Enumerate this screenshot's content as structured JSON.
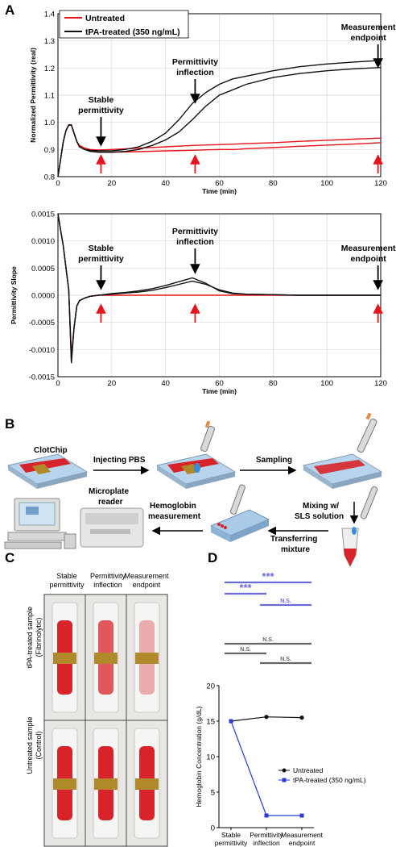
{
  "panels": {
    "A": "A",
    "B": "B",
    "C": "C",
    "D": "D"
  },
  "colors": {
    "untreated": "#e8141c",
    "tpa": "#111111",
    "tpa_d": "#2a3bd6",
    "sig": "#6b6bd8",
    "gray_bar": "#666666",
    "chip_glass": "#b8d4ec",
    "blood": "#d8232a",
    "gold": "#b08a2a"
  },
  "chart_data": [
    {
      "type": "line",
      "panel": "A-top",
      "xlabel": "Time (min)",
      "ylabel": "Normalized Permittivity (real)",
      "xlim": [
        0,
        120
      ],
      "ylim": [
        0.8,
        1.4
      ],
      "xticks": [
        0,
        20,
        40,
        60,
        80,
        100,
        120
      ],
      "yticks": [
        0.8,
        0.9,
        1.0,
        1.1,
        1.2,
        1.3,
        1.4
      ],
      "yticklabels": [
        "0.8",
        "0.9",
        "1.0",
        "1.1",
        "1.2",
        "1.3",
        "1.4"
      ],
      "grid": true,
      "legend": "top-left",
      "series": [
        {
          "name": "Untreated",
          "color": "#e8141c",
          "x": [
            0,
            2,
            3,
            4,
            5,
            6,
            7,
            8,
            10,
            12,
            15,
            20,
            30,
            40,
            50,
            60,
            66,
            70,
            80,
            90,
            100,
            110,
            120
          ],
          "y": [
            0.8,
            0.93,
            0.97,
            0.99,
            0.99,
            0.96,
            0.93,
            0.915,
            0.905,
            0.9,
            0.898,
            0.9,
            0.905,
            0.91,
            0.915,
            0.918,
            0.92,
            0.922,
            0.925,
            0.93,
            0.934,
            0.938,
            0.942
          ]
        },
        {
          "name": "Untreated",
          "color": "#e8141c",
          "x": [
            0,
            2,
            3,
            4,
            5,
            6,
            7,
            8,
            10,
            12,
            15,
            20,
            30,
            40,
            50,
            60,
            66,
            70,
            80,
            90,
            100,
            110,
            120
          ],
          "y": [
            0.8,
            0.93,
            0.97,
            0.99,
            0.99,
            0.96,
            0.93,
            0.91,
            0.9,
            0.895,
            0.89,
            0.89,
            0.892,
            0.895,
            0.897,
            0.9,
            0.9,
            0.903,
            0.907,
            0.912,
            0.916,
            0.92,
            0.925
          ]
        },
        {
          "name": "tPA-treated (350 ng/mL)",
          "color": "#111111",
          "x": [
            0,
            2,
            3,
            4,
            5,
            6,
            7,
            8,
            10,
            12,
            15,
            20,
            25,
            30,
            35,
            40,
            45,
            50,
            55,
            60,
            65,
            70,
            80,
            90,
            100,
            110,
            120
          ],
          "y": [
            0.8,
            0.93,
            0.97,
            0.99,
            0.99,
            0.96,
            0.93,
            0.91,
            0.9,
            0.897,
            0.895,
            0.895,
            0.9,
            0.91,
            0.93,
            0.96,
            1.01,
            1.07,
            1.11,
            1.14,
            1.16,
            1.17,
            1.19,
            1.205,
            1.215,
            1.222,
            1.228
          ]
        },
        {
          "name": "tPA-treated (350 ng/mL)",
          "color": "#111111",
          "x": [
            0,
            2,
            3,
            4,
            5,
            6,
            7,
            8,
            10,
            12,
            15,
            20,
            25,
            30,
            35,
            40,
            45,
            50,
            55,
            60,
            65,
            70,
            80,
            90,
            100,
            110,
            120
          ],
          "y": [
            0.8,
            0.93,
            0.97,
            0.99,
            0.99,
            0.96,
            0.93,
            0.91,
            0.9,
            0.893,
            0.89,
            0.89,
            0.893,
            0.9,
            0.915,
            0.935,
            0.965,
            1.01,
            1.06,
            1.1,
            1.12,
            1.14,
            1.165,
            1.18,
            1.19,
            1.197,
            1.202
          ]
        }
      ],
      "annotations": [
        {
          "text": [
            "Stable",
            "permittivity"
          ],
          "x": 16
        },
        {
          "text": [
            "Permittivity",
            "inflection"
          ],
          "x": 51
        },
        {
          "text": [
            "Measurement",
            "endpoint"
          ],
          "x": 119
        }
      ]
    },
    {
      "type": "line",
      "panel": "A-bottom",
      "xlabel": "Time (min)",
      "ylabel": "Permittivity Slope",
      "xlim": [
        0,
        120
      ],
      "ylim": [
        -0.0015,
        0.0015
      ],
      "xticks": [
        0,
        20,
        40,
        60,
        80,
        100,
        120
      ],
      "yticks": [
        -0.0015,
        -0.001,
        -0.0005,
        0,
        0.0005,
        0.001,
        0.0015
      ],
      "yticklabels": [
        "-0.0015",
        "-0.0010",
        "-0.0005",
        "0.0000",
        "0.0005",
        "0.0010",
        "0.0015"
      ],
      "grid": true,
      "series": [
        {
          "name": "Untreated",
          "color": "#e8141c",
          "x": [
            0,
            1,
            2,
            3,
            4,
            5,
            6,
            7,
            8,
            10,
            12,
            15,
            20,
            30,
            40,
            50,
            60,
            70,
            80,
            90,
            100,
            110,
            120
          ],
          "y": [
            0.0015,
            0.0012,
            0.0009,
            0.0005,
            0.0001,
            -0.0011,
            -0.0006,
            -0.0002,
            -0.0001,
            -5e-05,
            -2e-05,
            0.0,
            0.0,
            0.0,
            0.0,
            0.0,
            0.0,
            0.0,
            0.0,
            0.0,
            0.0,
            0.0,
            0.0
          ]
        },
        {
          "name": "tPA-treated (350 ng/mL)",
          "color": "#111111",
          "x": [
            0,
            1,
            2,
            3,
            4,
            5,
            6,
            7,
            8,
            10,
            12,
            15,
            20,
            25,
            30,
            35,
            40,
            45,
            50,
            55,
            60,
            65,
            70,
            80,
            90,
            100,
            110,
            120
          ],
          "y": [
            0.0015,
            0.0012,
            0.0009,
            0.0005,
            0.0001,
            -0.0012,
            -0.0006,
            -0.0002,
            -0.0001,
            -5e-05,
            -2e-05,
            0.0,
            3e-05,
            5e-05,
            8e-05,
            0.00012,
            0.00018,
            0.00025,
            0.00032,
            0.00022,
            8e-05,
            3e-05,
            2e-05,
            1e-05,
            0.0,
            0.0,
            0.0,
            0.0
          ]
        },
        {
          "name": "tPA-treated (350 ng/mL)",
          "color": "#111111",
          "x": [
            0,
            1,
            2,
            3,
            4,
            5,
            6,
            7,
            8,
            10,
            12,
            15,
            20,
            25,
            30,
            35,
            40,
            45,
            50,
            55,
            60,
            65,
            70,
            80,
            90,
            100,
            110,
            120
          ],
          "y": [
            0.0015,
            0.0012,
            0.0009,
            0.0005,
            0.0001,
            -0.00125,
            -0.0006,
            -0.0002,
            -0.0001,
            -5e-05,
            -2e-05,
            0.0,
            2e-05,
            4e-05,
            6e-05,
            9e-05,
            0.00014,
            0.0002,
            0.00026,
            0.0002,
            0.0001,
            4e-05,
            2e-05,
            1e-05,
            0.0,
            0.0,
            0.0,
            0.0
          ]
        }
      ],
      "annotations": [
        {
          "text": [
            "Stable",
            "permittivity"
          ],
          "x": 16
        },
        {
          "text": [
            "Permittivity",
            "inflection"
          ],
          "x": 51
        },
        {
          "text": [
            "Measurement",
            "endpoint"
          ],
          "x": 119
        }
      ]
    },
    {
      "type": "line",
      "panel": "D",
      "ylabel": "Hemoglobin Concentration (g/dL)",
      "categories": [
        [
          "Stable",
          "permittivity"
        ],
        [
          "Permittivity",
          "inflection"
        ],
        [
          "Measurement",
          "endpoint"
        ]
      ],
      "ylim": [
        0,
        20
      ],
      "yticks": [
        0,
        5,
        10,
        15,
        20
      ],
      "legend": "right",
      "series": [
        {
          "name": "Untreated",
          "color": "#111111",
          "values": [
            15.0,
            15.6,
            15.5
          ]
        },
        {
          "name": "tPA-treated (350 ng/mL)",
          "color": "#2a3bd6",
          "values": [
            15.0,
            1.7,
            1.7
          ]
        }
      ],
      "significance": [
        {
          "label": "***",
          "from": 0,
          "to": 2,
          "color": "#6b6bd8"
        },
        {
          "label": "***",
          "from": 0,
          "to": 1,
          "color": "#6b6bd8"
        },
        {
          "label": "N.S.",
          "from": 1,
          "to": 2,
          "color": "#6b6bd8"
        },
        {
          "label": "N.S.",
          "from": 0,
          "to": 2,
          "color": "#666666"
        },
        {
          "label": "N.S.",
          "from": 0,
          "to": 1,
          "color": "#666666"
        },
        {
          "label": "N.S.",
          "from": 1,
          "to": 2,
          "color": "#666666"
        }
      ]
    }
  ],
  "panel_b": {
    "clotchip": "ClotChip",
    "injecting": "Injecting PBS",
    "sampling": "Sampling",
    "mixing": [
      "Mixing w/",
      "SLS solution"
    ],
    "transferring": [
      "Transferring",
      "mixture"
    ],
    "hemoglobin": [
      "Hemoglobin",
      "measurement"
    ],
    "microplate": [
      "Microplate",
      "reader"
    ]
  },
  "panel_c": {
    "columns": [
      [
        "Stable",
        "permittivity"
      ],
      [
        "Permittivity",
        "inflection"
      ],
      [
        "Measurement",
        "endpoint"
      ]
    ],
    "rows": [
      [
        "tPA-treated sample",
        "(Fibrinolytic)"
      ],
      [
        "Untreated sample",
        "(Control)"
      ]
    ]
  }
}
